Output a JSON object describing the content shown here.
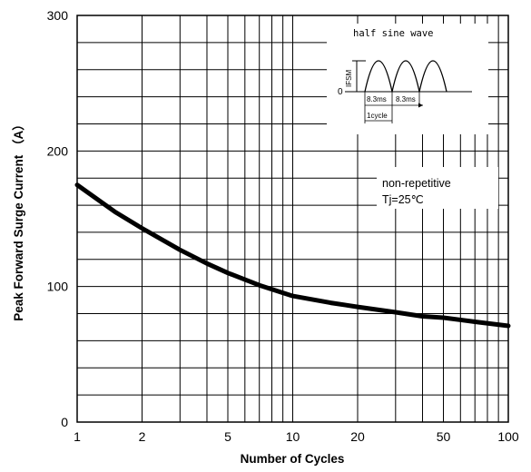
{
  "chart_data": {
    "type": "line",
    "xlabel": "Number of Cycles",
    "ylabel": "Peak Forward Surge Current （A）",
    "x_scale": "log",
    "xlim": [
      1,
      100
    ],
    "ylim": [
      0,
      300
    ],
    "x_tick_labels": [
      {
        "value": 1,
        "label": "1"
      },
      {
        "value": 2,
        "label": "2"
      },
      {
        "value": 5,
        "label": "5"
      },
      {
        "value": 10,
        "label": "10"
      },
      {
        "value": 20,
        "label": "20"
      },
      {
        "value": 50,
        "label": "50"
      },
      {
        "value": 100,
        "label": "100"
      }
    ],
    "y_tick_labels": [
      {
        "value": 0,
        "label": "0"
      },
      {
        "value": 100,
        "label": "100"
      },
      {
        "value": 200,
        "label": "200"
      },
      {
        "value": 300,
        "label": "300"
      }
    ],
    "grid": true,
    "series": [
      {
        "x": [
          1,
          1.5,
          2,
          3,
          4,
          5,
          7,
          10,
          15,
          20,
          30,
          40,
          50,
          70,
          100
        ],
        "y": [
          175,
          155,
          143,
          127,
          117,
          110,
          101,
          93,
          88,
          85,
          81,
          78,
          77,
          74,
          71
        ]
      }
    ],
    "annotations": {
      "condition_line1": "non-repetitive",
      "condition_line2": "Tj=25℃"
    },
    "inset": {
      "title": "half sine wave",
      "ifsm_label": "IFSM",
      "zero_label": "0",
      "half_period_1": "8.3ms",
      "half_period_2": "8.3ms",
      "cycle_label": "1cycle"
    }
  }
}
